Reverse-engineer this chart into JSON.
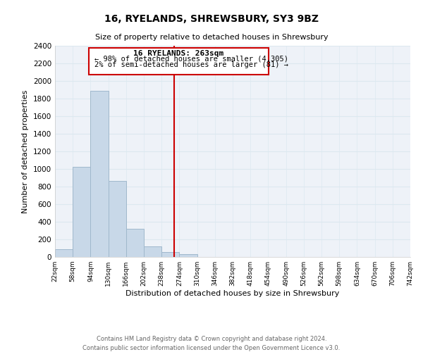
{
  "title": "16, RYELANDS, SHREWSBURY, SY3 9BZ",
  "subtitle": "Size of property relative to detached houses in Shrewsbury",
  "xlabel": "Distribution of detached houses by size in Shrewsbury",
  "ylabel": "Number of detached properties",
  "footer_line1": "Contains HM Land Registry data © Crown copyright and database right 2024.",
  "footer_line2": "Contains public sector information licensed under the Open Government Licence v3.0.",
  "bar_edges": [
    22,
    58,
    94,
    130,
    166,
    202,
    238,
    274,
    310,
    346,
    382,
    418,
    454,
    490,
    526,
    562,
    598,
    634,
    670,
    706,
    742
  ],
  "bar_heights": [
    90,
    1025,
    1890,
    865,
    320,
    120,
    55,
    30,
    0,
    0,
    0,
    0,
    0,
    0,
    0,
    0,
    0,
    0,
    0,
    0
  ],
  "bar_color": "#c8d8e8",
  "bar_edgecolor": "#a0b8cc",
  "vline_x": 263,
  "vline_color": "#cc0000",
  "annotation_title": "16 RYELANDS: 263sqm",
  "annotation_line1": "← 98% of detached houses are smaller (4,305)",
  "annotation_line2": "2% of semi-detached houses are larger (81) →",
  "annotation_box_color": "#cc0000",
  "annotation_bg": "#ffffff",
  "ylim": [
    0,
    2400
  ],
  "yticks": [
    0,
    200,
    400,
    600,
    800,
    1000,
    1200,
    1400,
    1600,
    1800,
    2000,
    2200,
    2400
  ],
  "tick_labels": [
    "22sqm",
    "58sqm",
    "94sqm",
    "130sqm",
    "166sqm",
    "202sqm",
    "238sqm",
    "274sqm",
    "310sqm",
    "346sqm",
    "382sqm",
    "418sqm",
    "454sqm",
    "490sqm",
    "526sqm",
    "562sqm",
    "598sqm",
    "634sqm",
    "670sqm",
    "706sqm",
    "742sqm"
  ],
  "grid_color": "#dce8f0",
  "background_color": "#ffffff",
  "plot_bg_color": "#eef2f8"
}
